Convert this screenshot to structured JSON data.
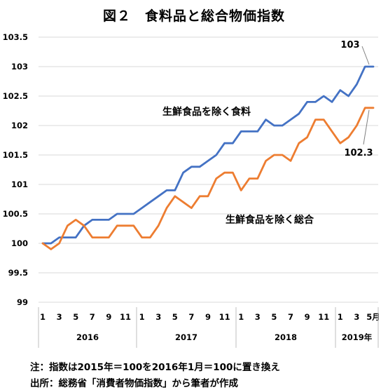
{
  "title": "図２　食料品と総合物価指数",
  "notes": {
    "note": "注：指数は2015年＝100を2016年1月＝100に置き換え",
    "source": "出所：総務省「消費者物価指数」から筆者が作成"
  },
  "chart_data": {
    "type": "line",
    "title": "図２　食料品と総合物価指数",
    "ylim": [
      99,
      103.5
    ],
    "yticks": [
      "103.5",
      "103",
      "102.5",
      "102",
      "101.5",
      "101",
      "100.5",
      "100",
      "99.5",
      "99"
    ],
    "ytick_values": [
      103.5,
      103,
      102.5,
      102,
      101.5,
      101,
      100.5,
      100,
      99.5,
      99
    ],
    "x_tick_labels": [
      "1",
      "3",
      "5",
      "7",
      "9",
      "11",
      "1",
      "3",
      "5",
      "7",
      "9",
      "11",
      "1",
      "3",
      "5",
      "7",
      "9",
      "11",
      "1",
      "3",
      "5月"
    ],
    "years": [
      "2016",
      "2017",
      "2018",
      "2019年"
    ],
    "grid": "horizontal",
    "series": [
      {
        "name": "生鮮食品を除く食料",
        "color": "#4472C4",
        "end_label": "103",
        "values": [
          100,
          100,
          100.1,
          100.1,
          100.1,
          100.3,
          100.4,
          100.4,
          100.4,
          100.5,
          100.5,
          100.5,
          100.6,
          100.7,
          100.8,
          100.9,
          100.9,
          101.2,
          101.3,
          101.3,
          101.4,
          101.5,
          101.7,
          101.7,
          101.9,
          101.9,
          101.9,
          102.1,
          102.0,
          102.0,
          102.1,
          102.2,
          102.4,
          102.4,
          102.5,
          102.4,
          102.6,
          102.5,
          102.7,
          103.0,
          103.0
        ]
      },
      {
        "name": "生鮮食品を除く総合",
        "color": "#ED7D31",
        "end_label": "102.3",
        "values": [
          100,
          99.9,
          100.0,
          100.3,
          100.4,
          100.3,
          100.1,
          100.1,
          100.1,
          100.3,
          100.3,
          100.3,
          100.1,
          100.1,
          100.3,
          100.6,
          100.8,
          100.7,
          100.6,
          100.8,
          100.8,
          101.1,
          101.2,
          101.2,
          100.9,
          101.1,
          101.1,
          101.4,
          101.5,
          101.5,
          101.4,
          101.7,
          101.8,
          102.1,
          102.1,
          101.9,
          101.7,
          101.8,
          102.0,
          102.3,
          102.3
        ]
      }
    ]
  }
}
